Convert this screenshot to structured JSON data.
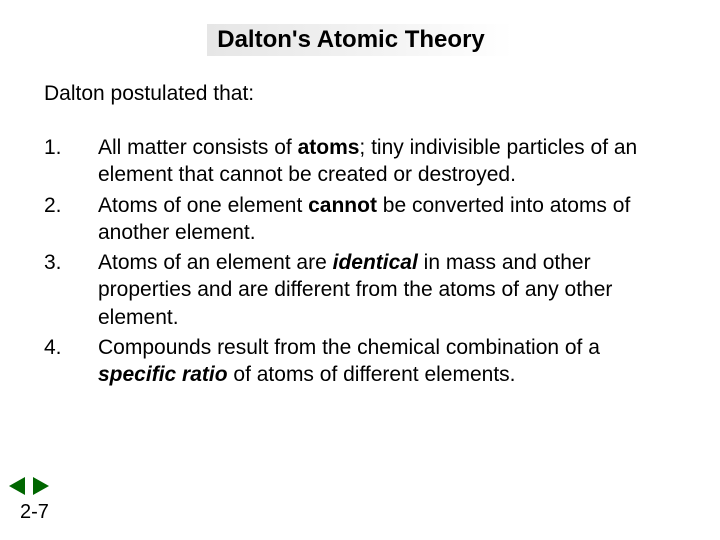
{
  "slide": {
    "title": "Dalton's Atomic Theory",
    "intro": "Dalton postulated that:",
    "page_number": "2-7",
    "title_bg_gradient": [
      "#e6e6e6",
      "#f4f4f4",
      "#ffffff"
    ],
    "text_color": "#000000",
    "background_color": "#ffffff",
    "title_fontsize": 24,
    "body_fontsize": 21,
    "postulates": [
      {
        "n": "1.",
        "html": "All matter consists of <b>atoms</b>; tiny indivisible particles of an element that cannot be created or destroyed."
      },
      {
        "n": "2.",
        "html": "Atoms of one element <b>cannot</b> be converted into atoms of another element."
      },
      {
        "n": "3.",
        "html": "Atoms of an element are <b><i>identical</i></b> in mass and other properties and are different from the atoms of any other element."
      },
      {
        "n": "4.",
        "html": "Compounds result from the chemical combination of a <b><i>specific ratio</i></b> of atoms of different elements."
      }
    ]
  },
  "nav": {
    "arrow_color": "#006600",
    "prev_label": "previous",
    "next_label": "next"
  }
}
